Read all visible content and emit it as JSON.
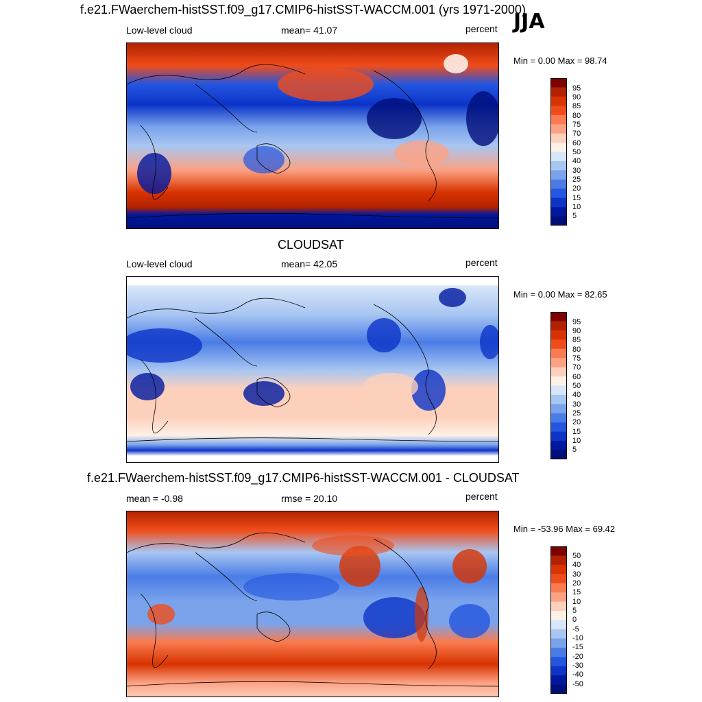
{
  "season": "JJA",
  "panels": [
    {
      "title": "f.e21.FWaerchem-histSST.f09_g17.CMIP6-histSST-WACCM.001 (yrs 1971-2000)",
      "left_label": "Low-level cloud",
      "center_label": "mean=  41.07",
      "right_label": "percent",
      "minmax": "Min =   0.00 Max =  98.74",
      "colorbar_labels": [
        "95",
        "90",
        "85",
        "80",
        "75",
        "70",
        "60",
        "50",
        "40",
        "30",
        "25",
        "20",
        "15",
        "10",
        "5"
      ],
      "kind": "model"
    },
    {
      "title": "CLOUDSAT",
      "left_label": "Low-level cloud",
      "center_label": "mean=  42.05",
      "right_label": "percent",
      "minmax": "Min =   0.00 Max =  82.65",
      "colorbar_labels": [
        "95",
        "90",
        "85",
        "80",
        "75",
        "70",
        "60",
        "50",
        "40",
        "30",
        "25",
        "20",
        "15",
        "10",
        "5"
      ],
      "kind": "obs"
    },
    {
      "title": "f.e21.FWaerchem-histSST.f09_g17.CMIP6-histSST-WACCM.001 - CLOUDSAT",
      "left_label": "mean =  -0.98",
      "center_label": "rmse =  20.10",
      "right_label": "percent",
      "minmax": "Min = -53.96 Max =  69.42",
      "colorbar_labels": [
        "50",
        "40",
        "30",
        "20",
        "15",
        "10",
        "5",
        "0",
        "-5",
        "-10",
        "-15",
        "-20",
        "-30",
        "-40",
        "-50"
      ],
      "kind": "diff"
    }
  ],
  "colors": [
    "#7f0000",
    "#b22200",
    "#d83300",
    "#f04c1a",
    "#f97b4f",
    "#fca284",
    "#fdd0bc",
    "#fdf0e6",
    "#d7e6f8",
    "#a8c6f2",
    "#7aa3ec",
    "#4a7ce6",
    "#2456e0",
    "#0c34c8",
    "#0018a0",
    "#000e7a"
  ]
}
